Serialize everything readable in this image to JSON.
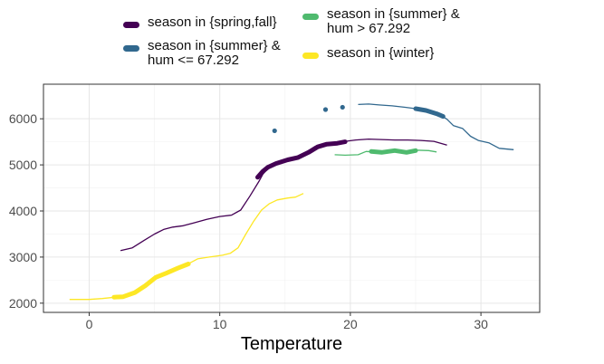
{
  "chart_data": {
    "type": "line",
    "title": "",
    "xlabel": "Temperature",
    "ylabel": "",
    "xlim": [
      -3.5,
      34.5
    ],
    "ylim": [
      1800,
      6750
    ],
    "x_ticks": [
      0,
      10,
      20,
      30
    ],
    "y_ticks": [
      2000,
      3000,
      4000,
      5000,
      6000
    ],
    "grid": true,
    "legend_position": "top",
    "series": [
      {
        "name": "season in {spring,fall}",
        "color": "#440154",
        "thin": [
          [
            2.4,
            3140
          ],
          [
            3.3,
            3200
          ],
          [
            4.2,
            3360
          ],
          [
            5.0,
            3500
          ],
          [
            5.7,
            3600
          ],
          [
            6.4,
            3650
          ],
          [
            7.2,
            3680
          ],
          [
            8.0,
            3740
          ],
          [
            9.0,
            3820
          ],
          [
            10.0,
            3880
          ],
          [
            10.9,
            3910
          ],
          [
            11.6,
            4020
          ],
          [
            12.3,
            4320
          ],
          [
            13.0,
            4640
          ],
          [
            13.3,
            4800
          ],
          [
            13.7,
            4920
          ],
          [
            14.2,
            5020
          ],
          [
            15.0,
            5100
          ],
          [
            15.8,
            5150
          ],
          [
            16.6,
            5270
          ],
          [
            17.3,
            5400
          ],
          [
            18.2,
            5460
          ],
          [
            19.0,
            5480
          ],
          [
            19.6,
            5510
          ],
          [
            20.4,
            5540
          ],
          [
            21.4,
            5560
          ],
          [
            22.4,
            5550
          ],
          [
            23.4,
            5540
          ],
          [
            24.4,
            5540
          ],
          [
            25.4,
            5530
          ],
          [
            26.4,
            5510
          ],
          [
            27.4,
            5430
          ]
        ],
        "bold": [
          [
            12.9,
            4730
          ],
          [
            13.3,
            4860
          ],
          [
            13.7,
            4950
          ],
          [
            14.3,
            5030
          ],
          [
            15.2,
            5110
          ],
          [
            16.0,
            5160
          ],
          [
            16.8,
            5270
          ],
          [
            17.5,
            5390
          ],
          [
            18.2,
            5450
          ],
          [
            19.0,
            5470
          ],
          [
            19.6,
            5500
          ]
        ]
      },
      {
        "name": "season in {summer} &\n hum <= 67.292",
        "color": "#31688e",
        "thin": [
          [
            20.6,
            6310
          ],
          [
            21.4,
            6320
          ],
          [
            22.2,
            6300
          ],
          [
            23.2,
            6280
          ],
          [
            24.2,
            6250
          ],
          [
            25.0,
            6220
          ],
          [
            26.0,
            6180
          ],
          [
            26.8,
            6100
          ],
          [
            27.4,
            5990
          ],
          [
            27.9,
            5850
          ],
          [
            28.6,
            5790
          ],
          [
            29.2,
            5620
          ],
          [
            29.8,
            5530
          ],
          [
            30.6,
            5480
          ],
          [
            31.4,
            5360
          ],
          [
            32.5,
            5330
          ]
        ],
        "bold": [
          [
            25.0,
            6220
          ],
          [
            25.8,
            6180
          ],
          [
            26.6,
            6110
          ],
          [
            27.1,
            6050
          ]
        ],
        "points": [
          [
            14.2,
            5740
          ],
          [
            18.1,
            6200
          ],
          [
            19.4,
            6250
          ]
        ]
      },
      {
        "name": "season in {summer} &\n hum > 67.292",
        "color": "#4fba6e",
        "thin": [
          [
            18.8,
            5220
          ],
          [
            19.6,
            5210
          ],
          [
            20.6,
            5220
          ],
          [
            21.2,
            5290
          ],
          [
            22.0,
            5280
          ],
          [
            23.0,
            5300
          ],
          [
            24.0,
            5270
          ],
          [
            25.0,
            5320
          ],
          [
            26.0,
            5310
          ],
          [
            26.6,
            5280
          ]
        ],
        "bold": [
          [
            21.6,
            5290
          ],
          [
            22.4,
            5270
          ],
          [
            23.4,
            5310
          ],
          [
            24.3,
            5270
          ],
          [
            25.0,
            5310
          ]
        ]
      },
      {
        "name": "season in {winter}",
        "color": "#fde725",
        "thin": [
          [
            -1.5,
            2080
          ],
          [
            0.0,
            2080
          ],
          [
            1.0,
            2100
          ],
          [
            2.0,
            2130
          ],
          [
            2.8,
            2160
          ],
          [
            3.6,
            2260
          ],
          [
            4.4,
            2420
          ],
          [
            5.2,
            2590
          ],
          [
            6.0,
            2680
          ],
          [
            6.8,
            2780
          ],
          [
            7.5,
            2840
          ],
          [
            8.3,
            2960
          ],
          [
            9.2,
            3000
          ],
          [
            10.2,
            3040
          ],
          [
            10.8,
            3080
          ],
          [
            11.4,
            3200
          ],
          [
            12.0,
            3500
          ],
          [
            12.6,
            3780
          ],
          [
            13.2,
            4020
          ],
          [
            13.8,
            4160
          ],
          [
            14.4,
            4240
          ],
          [
            15.2,
            4280
          ],
          [
            15.8,
            4300
          ],
          [
            16.4,
            4380
          ]
        ],
        "bold": [
          [
            1.9,
            2130
          ],
          [
            2.6,
            2140
          ],
          [
            3.5,
            2230
          ],
          [
            4.3,
            2380
          ],
          [
            5.1,
            2560
          ],
          [
            5.9,
            2650
          ],
          [
            6.8,
            2760
          ],
          [
            7.6,
            2850
          ]
        ]
      }
    ]
  }
}
